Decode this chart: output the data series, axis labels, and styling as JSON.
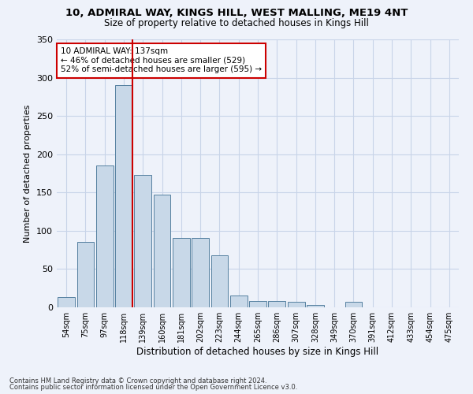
{
  "title_line1": "10, ADMIRAL WAY, KINGS HILL, WEST MALLING, ME19 4NT",
  "title_line2": "Size of property relative to detached houses in Kings Hill",
  "xlabel": "Distribution of detached houses by size in Kings Hill",
  "ylabel": "Number of detached properties",
  "footer_line1": "Contains HM Land Registry data © Crown copyright and database right 2024.",
  "footer_line2": "Contains public sector information licensed under the Open Government Licence v3.0.",
  "annotation_line1": "10 ADMIRAL WAY: 137sqm",
  "annotation_line2": "← 46% of detached houses are smaller (529)",
  "annotation_line3": "52% of semi-detached houses are larger (595) →",
  "bar_color": "#c8d8e8",
  "bar_edge_color": "#5580a0",
  "grid_color": "#c8d4e8",
  "background_color": "#eef2fa",
  "red_line_color": "#cc0000",
  "categories": [
    "54sqm",
    "75sqm",
    "97sqm",
    "118sqm",
    "139sqm",
    "160sqm",
    "181sqm",
    "202sqm",
    "223sqm",
    "244sqm",
    "265sqm",
    "286sqm",
    "307sqm",
    "328sqm",
    "349sqm",
    "370sqm",
    "391sqm",
    "412sqm",
    "433sqm",
    "454sqm",
    "475sqm"
  ],
  "values": [
    13,
    85,
    185,
    290,
    173,
    147,
    91,
    91,
    68,
    15,
    8,
    8,
    7,
    3,
    0,
    7,
    0,
    0,
    0,
    0,
    0
  ],
  "ylim": [
    0,
    350
  ],
  "yticks": [
    0,
    50,
    100,
    150,
    200,
    250,
    300,
    350
  ]
}
